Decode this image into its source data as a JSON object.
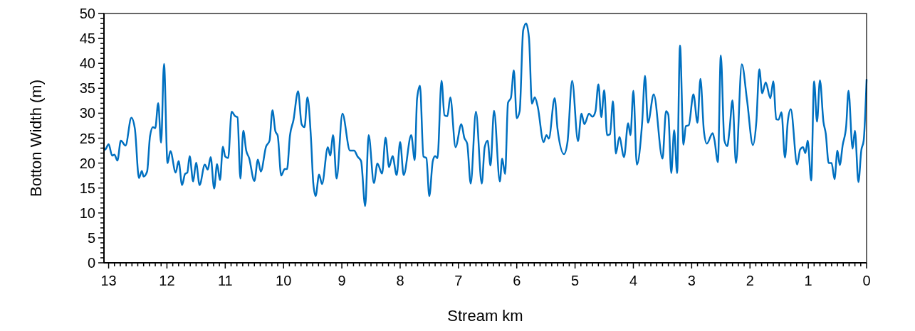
{
  "chart_data": {
    "type": "line",
    "xlabel": "Stream km",
    "ylabel": "Botton Width (m)",
    "color": "#0070c0",
    "xlim": [
      13.08,
      0
    ],
    "ylim": [
      0,
      50
    ],
    "xticks": [
      0,
      {
        "value": 0.1,
        "label": null
      },
      {
        "value": 0.2,
        "label": null
      },
      {
        "value": 0.3,
        "label": null
      },
      {
        "value": 0.4,
        "label": null
      },
      {
        "value": 0.5,
        "label": null
      },
      {
        "value": 0.6,
        "label": null
      },
      {
        "value": 0.7,
        "label": null
      },
      {
        "value": 0.8,
        "label": null
      },
      {
        "value": 0.9,
        "label": null
      },
      1,
      {
        "value": 1.1,
        "label": null
      },
      {
        "value": 1.2,
        "label": null
      },
      {
        "value": 1.3,
        "label": null
      },
      {
        "value": 1.4,
        "label": null
      },
      {
        "value": 1.5,
        "label": null
      },
      {
        "value": 1.6,
        "label": null
      },
      {
        "value": 1.7,
        "label": null
      },
      {
        "value": 1.8,
        "label": null
      },
      {
        "value": 1.9,
        "label": null
      },
      2,
      {
        "value": 2.1,
        "label": null
      },
      {
        "value": 2.2,
        "label": null
      },
      {
        "value": 2.3,
        "label": null
      },
      {
        "value": 2.4,
        "label": null
      },
      {
        "value": 2.5,
        "label": null
      },
      {
        "value": 2.6,
        "label": null
      },
      {
        "value": 2.7,
        "label": null
      },
      {
        "value": 2.8,
        "label": null
      },
      {
        "value": 2.9,
        "label": null
      },
      3,
      {
        "value": 3.1,
        "label": null
      },
      {
        "value": 3.2,
        "label": null
      },
      {
        "value": 3.3,
        "label": null
      },
      {
        "value": 3.4,
        "label": null
      },
      {
        "value": 3.5,
        "label": null
      },
      {
        "value": 3.6,
        "label": null
      },
      {
        "value": 3.7,
        "label": null
      },
      {
        "value": 3.8,
        "label": null
      },
      {
        "value": 3.9,
        "label": null
      },
      4,
      {
        "value": 4.1,
        "label": null
      },
      {
        "value": 4.2,
        "label": null
      },
      {
        "value": 4.3,
        "label": null
      },
      {
        "value": 4.4,
        "label": null
      },
      {
        "value": 4.5,
        "label": null
      },
      {
        "value": 4.6,
        "label": null
      },
      {
        "value": 4.7,
        "label": null
      },
      {
        "value": 4.8,
        "label": null
      },
      {
        "value": 4.9,
        "label": null
      },
      5,
      {
        "value": 5.1,
        "label": null
      },
      {
        "value": 5.2,
        "label": null
      },
      {
        "value": 5.3,
        "label": null
      },
      {
        "value": 5.4,
        "label": null
      },
      {
        "value": 5.5,
        "label": null
      },
      {
        "value": 5.6,
        "label": null
      },
      {
        "value": 5.7,
        "label": null
      },
      {
        "value": 5.8,
        "label": null
      },
      {
        "value": 5.9,
        "label": null
      },
      6,
      {
        "value": 6.1,
        "label": null
      },
      {
        "value": 6.2,
        "label": null
      },
      {
        "value": 6.3,
        "label": null
      },
      {
        "value": 6.4,
        "label": null
      },
      {
        "value": 6.5,
        "label": null
      },
      {
        "value": 6.6,
        "label": null
      },
      {
        "value": 6.7,
        "label": null
      },
      {
        "value": 6.8,
        "label": null
      },
      {
        "value": 6.9,
        "label": null
      },
      7,
      {
        "value": 7.1,
        "label": null
      },
      {
        "value": 7.2,
        "label": null
      },
      {
        "value": 7.3,
        "label": null
      },
      {
        "value": 7.4,
        "label": null
      },
      {
        "value": 7.5,
        "label": null
      },
      {
        "value": 7.6,
        "label": null
      },
      {
        "value": 7.7,
        "label": null
      },
      {
        "value": 7.8,
        "label": null
      },
      {
        "value": 7.9,
        "label": null
      },
      8,
      {
        "value": 8.1,
        "label": null
      },
      {
        "value": 8.2,
        "label": null
      },
      {
        "value": 8.3,
        "label": null
      },
      {
        "value": 8.4,
        "label": null
      },
      {
        "value": 8.5,
        "label": null
      },
      {
        "value": 8.6,
        "label": null
      },
      {
        "value": 8.7,
        "label": null
      },
      {
        "value": 8.8,
        "label": null
      },
      {
        "value": 8.9,
        "label": null
      },
      9,
      {
        "value": 9.1,
        "label": null
      },
      {
        "value": 9.2,
        "label": null
      },
      {
        "value": 9.3,
        "label": null
      },
      {
        "value": 9.4,
        "label": null
      },
      {
        "value": 9.5,
        "label": null
      },
      {
        "value": 9.6,
        "label": null
      },
      {
        "value": 9.7,
        "label": null
      },
      {
        "value": 9.8,
        "label": null
      },
      {
        "value": 9.9,
        "label": null
      },
      10,
      {
        "value": 10.1,
        "label": null
      },
      {
        "value": 10.2,
        "label": null
      },
      {
        "value": 10.3,
        "label": null
      },
      {
        "value": 10.4,
        "label": null
      },
      {
        "value": 10.5,
        "label": null
      },
      {
        "value": 10.6,
        "label": null
      },
      {
        "value": 10.7,
        "label": null
      },
      {
        "value": 10.8,
        "label": null
      },
      {
        "value": 10.9,
        "label": null
      },
      11,
      {
        "value": 11.1,
        "label": null
      },
      {
        "value": 11.2,
        "label": null
      },
      {
        "value": 11.3,
        "label": null
      },
      {
        "value": 11.4,
        "label": null
      },
      {
        "value": 11.5,
        "label": null
      },
      {
        "value": 11.6,
        "label": null
      },
      {
        "value": 11.7,
        "label": null
      },
      {
        "value": 11.8,
        "label": null
      },
      {
        "value": 11.9,
        "label": null
      },
      12,
      {
        "value": 12.1,
        "label": null
      },
      {
        "value": 12.2,
        "label": null
      },
      {
        "value": 12.3,
        "label": null
      },
      {
        "value": 12.4,
        "label": null
      },
      {
        "value": 12.5,
        "label": null
      },
      {
        "value": 12.6,
        "label": null
      },
      {
        "value": 12.7,
        "label": null
      },
      {
        "value": 12.8,
        "label": null
      },
      {
        "value": 12.9,
        "label": null
      },
      13
    ],
    "yticks": [
      0,
      {
        "value": 1,
        "label": null
      },
      {
        "value": 2,
        "label": null
      },
      {
        "value": 3,
        "label": null
      },
      {
        "value": 4,
        "label": null
      },
      5,
      {
        "value": 6,
        "label": null
      },
      {
        "value": 7,
        "label": null
      },
      {
        "value": 8,
        "label": null
      },
      {
        "value": 9,
        "label": null
      },
      10,
      {
        "value": 11,
        "label": null
      },
      {
        "value": 12,
        "label": null
      },
      {
        "value": 13,
        "label": null
      },
      {
        "value": 14,
        "label": null
      },
      15,
      {
        "value": 16,
        "label": null
      },
      {
        "value": 17,
        "label": null
      },
      {
        "value": 18,
        "label": null
      },
      {
        "value": 19,
        "label": null
      },
      20,
      {
        "value": 21,
        "label": null
      },
      {
        "value": 22,
        "label": null
      },
      {
        "value": 23,
        "label": null
      },
      {
        "value": 24,
        "label": null
      },
      25,
      {
        "value": 26,
        "label": null
      },
      {
        "value": 27,
        "label": null
      },
      {
        "value": 28,
        "label": null
      },
      {
        "value": 29,
        "label": null
      },
      30,
      {
        "value": 31,
        "label": null
      },
      {
        "value": 32,
        "label": null
      },
      {
        "value": 33,
        "label": null
      },
      {
        "value": 34,
        "label": null
      },
      35,
      {
        "value": 36,
        "label": null
      },
      {
        "value": 37,
        "label": null
      },
      {
        "value": 38,
        "label": null
      },
      {
        "value": 39,
        "label": null
      },
      40,
      {
        "value": 41,
        "label": null
      },
      {
        "value": 42,
        "label": null
      },
      {
        "value": 43,
        "label": null
      },
      {
        "value": 44,
        "label": null
      },
      45,
      {
        "value": 46,
        "label": null
      },
      {
        "value": 47,
        "label": null
      },
      {
        "value": 48,
        "label": null
      },
      {
        "value": 49,
        "label": null
      },
      50
    ],
    "grid": false,
    "marker": "none",
    "line_style": "solid",
    "x": [
      13.08,
      13.06,
      13.0,
      12.94,
      12.9,
      12.85,
      12.79,
      12.71,
      12.61,
      12.55,
      12.48,
      12.43,
      12.4,
      12.34,
      12.29,
      12.24,
      12.2,
      12.15,
      12.1,
      12.05,
      11.99,
      11.94,
      11.85,
      11.8,
      11.74,
      11.69,
      11.65,
      11.61,
      11.55,
      11.5,
      11.44,
      11.35,
      11.3,
      11.25,
      11.19,
      11.14,
      11.09,
      11.04,
      11.0,
      10.95,
      10.89,
      10.83,
      10.79,
      10.74,
      10.69,
      10.64,
      10.59,
      10.5,
      10.44,
      10.39,
      10.3,
      10.24,
      10.19,
      10.14,
      10.1,
      10.04,
      9.98,
      9.94,
      9.89,
      9.83,
      9.75,
      9.69,
      9.64,
      9.59,
      9.53,
      9.49,
      9.45,
      9.39,
      9.34,
      9.24,
      9.2,
      9.15,
      9.09,
      8.99,
      8.86,
      8.79,
      8.73,
      8.67,
      8.6,
      8.54,
      8.45,
      8.39,
      8.31,
      8.25,
      8.19,
      8.13,
      8.06,
      8.0,
      7.94,
      7.81,
      7.75,
      7.71,
      7.66,
      7.6,
      7.55,
      7.5,
      7.44,
      7.4,
      7.36,
      7.29,
      7.24,
      7.19,
      7.14,
      7.05,
      6.95,
      6.9,
      6.85,
      6.79,
      6.7,
      6.6,
      6.55,
      6.5,
      6.45,
      6.39,
      6.29,
      6.25,
      6.2,
      6.15,
      6.1,
      6.05,
      6.0,
      5.95,
      5.89,
      5.84,
      5.79,
      5.74,
      5.69,
      5.64,
      5.54,
      5.49,
      5.45,
      5.35,
      5.3,
      5.19,
      5.13,
      5.05,
      4.95,
      4.89,
      4.84,
      4.76,
      4.7,
      4.65,
      4.6,
      4.55,
      4.5,
      4.45,
      4.4,
      4.35,
      4.3,
      4.24,
      4.16,
      4.09,
      4.05,
      4.0,
      3.94,
      3.85,
      3.8,
      3.75,
      3.65,
      3.5,
      3.44,
      3.4,
      3.35,
      3.3,
      3.25,
      3.2,
      3.14,
      3.1,
      3.05,
      2.97,
      2.9,
      2.85,
      2.79,
      2.74,
      2.64,
      2.61,
      2.55,
      2.5,
      2.44,
      2.39,
      2.35,
      2.3,
      2.24,
      2.14,
      2.05,
      1.95,
      1.89,
      1.84,
      1.79,
      1.73,
      1.65,
      1.6,
      1.55,
      1.51,
      1.46,
      1.4,
      1.35,
      1.3,
      1.19,
      1.14,
      1.09,
      1.05,
      1.01,
      0.95,
      0.9,
      0.85,
      0.8,
      0.74,
      0.7,
      0.65,
      0.6,
      0.55,
      0.5,
      0.46,
      0.41,
      0.35,
      0.31,
      0.24,
      0.2,
      0.14,
      0.09,
      0.05,
      0.0
    ],
    "values": [
      23.1,
      22.7,
      23.8,
      21.5,
      21.7,
      20.5,
      24.5,
      23.5,
      29.1,
      26.9,
      17.0,
      18.4,
      17.3,
      18.3,
      25.4,
      27.2,
      27.0,
      32.0,
      24.1,
      39.9,
      20.0,
      22.4,
      18.1,
      20.4,
      15.6,
      17.8,
      18.1,
      21.4,
      16.3,
      20.1,
      15.6,
      19.7,
      18.7,
      21.2,
      14.9,
      19.8,
      16.6,
      23.3,
      21.3,
      21.0,
      30.3,
      29.4,
      29.2,
      16.9,
      26.5,
      22.5,
      21.0,
      16.4,
      20.7,
      18.3,
      23.3,
      24.5,
      30.6,
      26.4,
      25.5,
      17.5,
      18.8,
      18.8,
      25.5,
      28.6,
      34.4,
      27.8,
      27.2,
      33.2,
      25.1,
      16.0,
      13.4,
      17.7,
      15.8,
      23.2,
      21.5,
      25.6,
      16.9,
      29.9,
      22.5,
      22.5,
      21.3,
      20.4,
      11.4,
      25.6,
      16.0,
      19.9,
      17.9,
      25.1,
      19.2,
      21.4,
      17.6,
      24.2,
      17.6,
      25.6,
      20.6,
      32.9,
      35.5,
      21.3,
      21.0,
      13.4,
      20.4,
      21.4,
      21.0,
      36.5,
      29.6,
      29.4,
      33.2,
      23.2,
      27.8,
      25.1,
      23.9,
      15.9,
      30.3,
      15.9,
      23.2,
      24.5,
      19.5,
      30.5,
      16.3,
      20.9,
      17.8,
      32.1,
      33.1,
      38.6,
      29.0,
      30.4,
      46.6,
      48.0,
      45.1,
      31.9,
      33.2,
      31.3,
      24.2,
      25.6,
      24.9,
      33.0,
      26.8,
      21.8,
      24.2,
      36.5,
      24.4,
      29.9,
      27.8,
      29.9,
      29.3,
      30.4,
      35.8,
      29.2,
      34.6,
      25.6,
      25.8,
      32.4,
      21.9,
      25.2,
      21.2,
      28.0,
      25.6,
      34.5,
      19.7,
      28.0,
      37.5,
      28.1,
      33.8,
      20.9,
      30.4,
      29.7,
      18.0,
      26.6,
      18.0,
      43.6,
      23.7,
      27.4,
      27.6,
      33.8,
      28.1,
      36.9,
      26.4,
      23.9,
      26.0,
      24.7,
      20.2,
      41.6,
      24.6,
      23.4,
      26.7,
      32.6,
      20.0,
      39.8,
      32.6,
      23.6,
      28.4,
      38.8,
      34.0,
      36.2,
      33.0,
      36.4,
      28.8,
      28.7,
      30.2,
      21.1,
      28.5,
      30.8,
      19.7,
      22.7,
      23.2,
      22.0,
      24.5,
      16.5,
      36.4,
      28.3,
      36.6,
      28.3,
      25.9,
      20.0,
      20.0,
      16.8,
      22.5,
      19.6,
      23.6,
      27.4,
      34.5,
      22.9,
      26.5,
      16.2,
      22.6,
      24.5,
      36.7
    ]
  }
}
